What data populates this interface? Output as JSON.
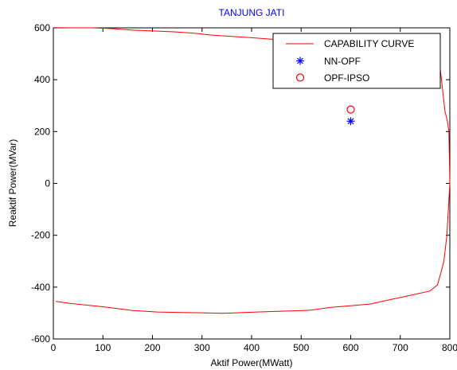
{
  "chart_data": {
    "type": "line",
    "title": "TANJUNG JATI",
    "xlabel": "Aktif Power(MWatt)",
    "ylabel": "Reaktif Power(MVar)",
    "xlim": [
      0,
      800
    ],
    "ylim": [
      -600,
      600
    ],
    "xticks": [
      0,
      100,
      200,
      300,
      400,
      500,
      600,
      700,
      800
    ],
    "yticks": [
      -600,
      -400,
      -200,
      0,
      200,
      400,
      600
    ],
    "xtick_labels": [
      "0",
      "100",
      "200",
      "300",
      "400",
      "500",
      "600",
      "700",
      "800"
    ],
    "ytick_labels": [
      "-600",
      "-400",
      "-200",
      "0",
      "200",
      "400",
      "600"
    ],
    "grid": false,
    "legend": "top-right",
    "colors": {
      "curve": "#ff0000",
      "nn_opf": "#0000ff",
      "opf_ipso": "#ff0000",
      "title": "#0000ff"
    },
    "series": [
      {
        "name": "CAPABILITY CURVE",
        "kind": "line",
        "x": [
          5,
          30,
          60,
          110,
          160,
          210,
          260,
          300,
          340,
          360,
          400,
          440,
          480,
          520,
          560,
          600,
          640,
          680,
          720,
          760,
          775,
          782,
          788,
          794,
          800,
          798,
          795,
          790,
          786,
          782,
          778,
          774,
          760,
          720,
          690,
          660,
          640,
          600,
          560,
          520,
          480,
          440,
          400,
          360,
          320,
          280,
          240,
          200,
          160,
          120,
          80,
          40,
          5
        ],
        "y": [
          -455,
          -462,
          -468,
          -478,
          -490,
          -496,
          -498,
          -499,
          -501,
          -500,
          -497,
          -494,
          -492,
          -489,
          -478,
          -472,
          -465,
          -448,
          -432,
          -415,
          -392,
          -345,
          -300,
          -200,
          0,
          200,
          240,
          280,
          350,
          420,
          480,
          515,
          540,
          550,
          553,
          555,
          553,
          550,
          548,
          547,
          551,
          556,
          562,
          567,
          572,
          580,
          585,
          588,
          591,
          597,
          600,
          600,
          601
        ]
      },
      {
        "name": "NN-OPF",
        "kind": "marker",
        "marker": "*",
        "x": [
          600
        ],
        "y": [
          240
        ]
      },
      {
        "name": "OPF-IPSO",
        "kind": "marker",
        "marker": "o",
        "x": [
          600
        ],
        "y": [
          285
        ]
      }
    ]
  }
}
